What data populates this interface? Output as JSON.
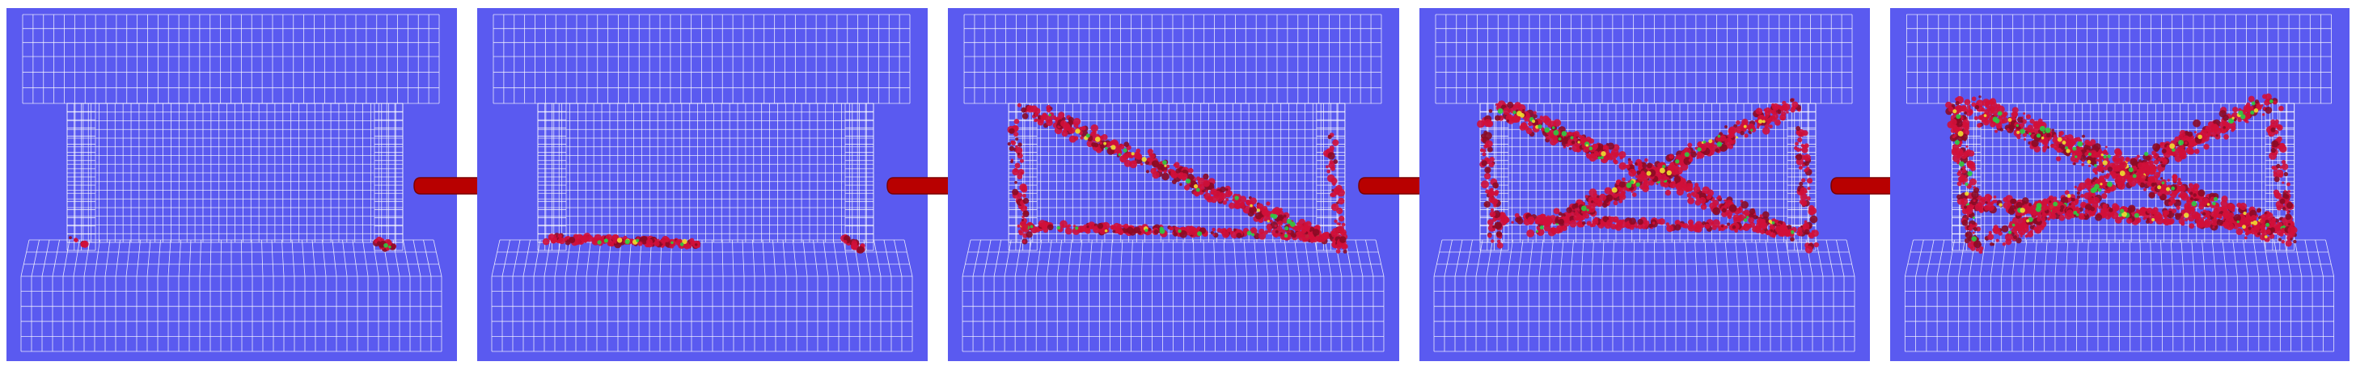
{
  "figure": {
    "background_color": "#ffffff",
    "panel_color": "#5a5af0",
    "mesh_color": "#ffffff",
    "arrow_color": "#b80000",
    "damage_colors": [
      "#d0103a",
      "#8b0a25",
      "#2ecc40",
      "#f0e030"
    ],
    "panels": [
      {
        "step": 1,
        "damage": "minor-base-corner"
      },
      {
        "step": 2,
        "damage": "horizontal-base-crack"
      },
      {
        "step": 3,
        "damage": "single-diagonal-band"
      },
      {
        "step": 4,
        "damage": "x-shaped-bands"
      },
      {
        "step": 5,
        "damage": "extensive-x-shaped-bands"
      }
    ],
    "arrows": [
      {
        "icon": "right-arrow-icon"
      },
      {
        "icon": "right-arrow-icon"
      },
      {
        "icon": "right-arrow-icon"
      },
      {
        "icon": "right-arrow-icon"
      }
    ]
  }
}
